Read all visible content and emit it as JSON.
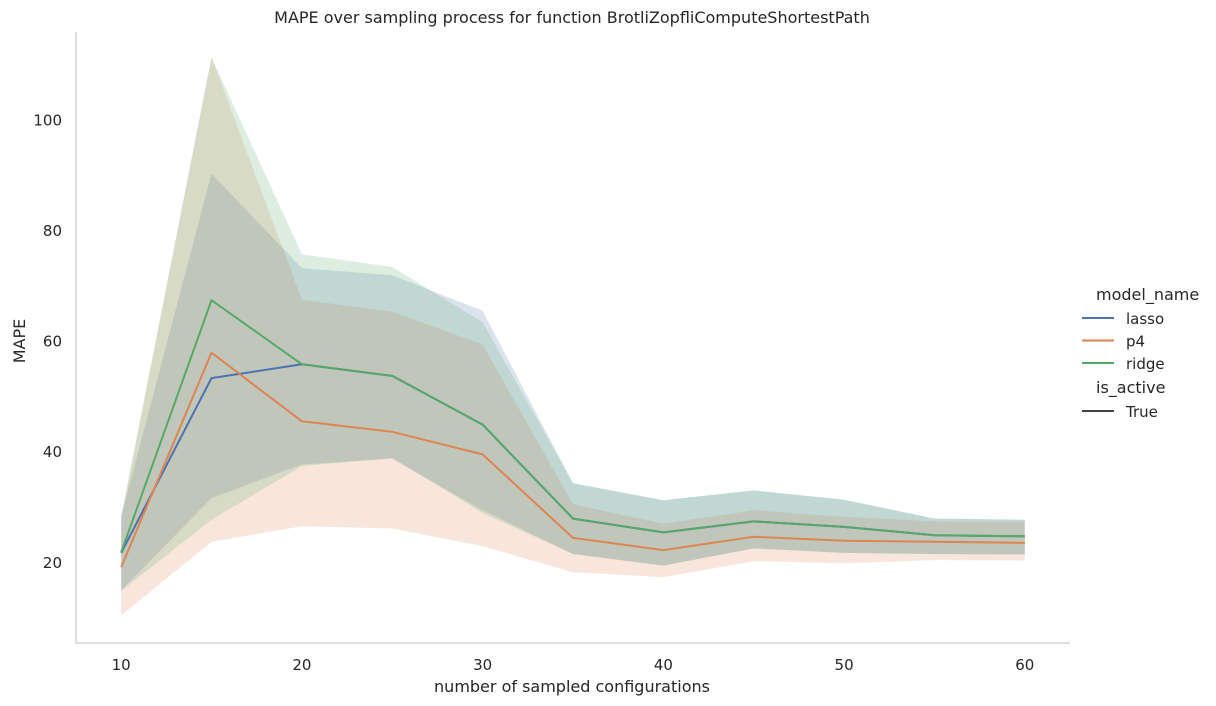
{
  "chart_data": {
    "type": "line",
    "title": "MAPE over sampling process for function BrotliZopfliComputeShortestPath",
    "xlabel": "number of sampled configurations",
    "ylabel": "MAPE",
    "xlim": [
      7.5,
      62.5
    ],
    "ylim": [
      5.5,
      116
    ],
    "x_ticks": [
      10,
      20,
      30,
      40,
      50,
      60
    ],
    "y_ticks": [
      20,
      40,
      60,
      80,
      100
    ],
    "grid": false,
    "legend_placement": "right",
    "legend": {
      "hue_title": "model_name",
      "style_title": "is_active",
      "style_entries": [
        "True"
      ]
    },
    "x": [
      10,
      15,
      20,
      25,
      30,
      35,
      40,
      45,
      50,
      55,
      60
    ],
    "series": [
      {
        "name": "lasso",
        "color": "#4c72b0",
        "values": [
          21.8,
          53.4,
          55.9,
          53.8,
          45.0,
          28.0,
          25.5,
          27.5,
          26.5,
          25.0,
          24.8
        ],
        "ci_lower": [
          15.0,
          31.7,
          37.8,
          38.8,
          29.5,
          21.6,
          19.5,
          22.6,
          21.8,
          21.6,
          21.5
        ],
        "ci_upper": [
          28.4,
          90.4,
          73.3,
          72.0,
          65.6,
          34.4,
          31.3,
          33.1,
          31.4,
          28.0,
          27.8
        ]
      },
      {
        "name": "p4",
        "color": "#dd8452",
        "values": [
          19.2,
          58.0,
          45.6,
          43.7,
          39.6,
          24.5,
          22.3,
          24.7,
          24.0,
          23.8,
          23.6
        ],
        "ci_lower": [
          10.5,
          23.8,
          26.6,
          26.2,
          23.0,
          18.3,
          17.4,
          20.3,
          19.9,
          20.5,
          20.4
        ],
        "ci_upper": [
          28.0,
          111.4,
          67.6,
          65.4,
          59.5,
          30.6,
          27.1,
          29.5,
          28.3,
          27.5,
          27.4
        ]
      },
      {
        "name": "ridge",
        "color": "#55a868",
        "values": [
          21.9,
          67.5,
          55.9,
          53.8,
          45.0,
          28.0,
          25.5,
          27.5,
          26.5,
          25.0,
          24.8
        ],
        "ci_lower": [
          14.9,
          27.8,
          37.5,
          39.0,
          29.0,
          21.6,
          19.5,
          22.6,
          21.8,
          21.6,
          21.5
        ],
        "ci_upper": [
          28.6,
          111.4,
          75.8,
          73.5,
          63.5,
          34.4,
          31.3,
          33.1,
          31.4,
          28.0,
          27.8
        ]
      }
    ]
  }
}
